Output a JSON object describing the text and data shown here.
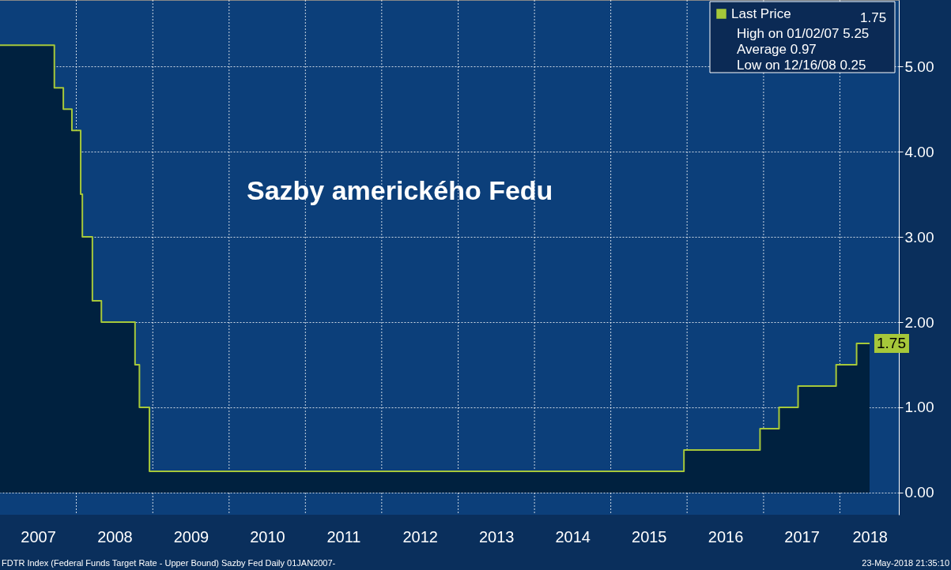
{
  "chart_data": {
    "type": "step",
    "title": "Sazby amerického Fedu",
    "x": [
      "2007-01-01",
      "2007-09-18",
      "2007-10-31",
      "2007-12-11",
      "2008-01-22",
      "2008-01-30",
      "2008-03-18",
      "2008-04-30",
      "2008-10-08",
      "2008-10-29",
      "2008-12-16",
      "2015-12-17",
      "2016-12-15",
      "2017-03-16",
      "2017-06-15",
      "2017-12-14",
      "2018-03-22",
      "2018-05-23"
    ],
    "series": [
      {
        "type": "area",
        "color": "#00213f",
        "values": [
          5.25,
          4.75,
          4.5,
          4.25,
          3.5,
          3.0,
          2.25,
          2.0,
          1.5,
          1.0,
          0.25,
          0.5,
          0.75,
          1.0,
          1.25,
          1.5,
          1.75,
          1.75
        ]
      },
      {
        "name": "Last Price",
        "color": "#a6c83a",
        "values": [
          5.25,
          4.75,
          4.5,
          4.25,
          3.5,
          3.0,
          2.25,
          2.0,
          1.5,
          1.0,
          0.25,
          0.5,
          0.75,
          1.0,
          1.25,
          1.5,
          1.75,
          1.75
        ],
        "value_labels": [
          null,
          null,
          null,
          null,
          null,
          null,
          null,
          null,
          null,
          null,
          null,
          null,
          null,
          null,
          null,
          null,
          null,
          "1.75"
        ]
      }
    ],
    "xlim": [
      "2007-01-01",
      "2018-10-10"
    ],
    "xticks": [
      {
        "value": "2007-07-02",
        "label": "2007"
      },
      {
        "value": "2008-01-01",
        "label": null
      },
      {
        "value": "2008-07-02",
        "label": "2008"
      },
      {
        "value": "2009-01-01",
        "label": null
      },
      {
        "value": "2009-07-02",
        "label": "2009"
      },
      {
        "value": "2010-01-01",
        "label": null
      },
      {
        "value": "2010-07-02",
        "label": "2010"
      },
      {
        "value": "2011-01-01",
        "label": null
      },
      {
        "value": "2011-07-02",
        "label": "2011"
      },
      {
        "value": "2012-01-01",
        "label": null
      },
      {
        "value": "2012-07-02",
        "label": "2012"
      },
      {
        "value": "2013-01-01",
        "label": null
      },
      {
        "value": "2013-07-02",
        "label": "2013"
      },
      {
        "value": "2014-01-01",
        "label": null
      },
      {
        "value": "2014-07-02",
        "label": "2014"
      },
      {
        "value": "2015-01-01",
        "label": null
      },
      {
        "value": "2015-07-02",
        "label": "2015"
      },
      {
        "value": "2016-01-01",
        "label": null
      },
      {
        "value": "2016-07-02",
        "label": "2016"
      },
      {
        "value": "2017-01-01",
        "label": null
      },
      {
        "value": "2017-07-02",
        "label": "2017"
      },
      {
        "value": "2018-01-01",
        "label": null
      },
      {
        "value": "2018-05-24",
        "label": "2018"
      }
    ],
    "ylim": [
      -0.26,
      5.78
    ],
    "yticks": [
      {
        "value": 0,
        "label": "0.00"
      },
      {
        "value": 1,
        "label": "1.00"
      },
      {
        "value": 2,
        "label": "2.00"
      },
      {
        "value": 3,
        "label": "3.00"
      },
      {
        "value": 4,
        "label": "4.00"
      },
      {
        "value": 5,
        "label": "5.00"
      }
    ],
    "grid": true,
    "legend": "top right",
    "annotations": [
      "High on 01/02/07 5.25",
      "Average 0.97",
      "Low on 12/16/08 0.25",
      "FDTR Index (Federal Funds Target Rate - Upper Bound) Sazby Fed  Daily 01JAN2007-",
      "23-May-2018 21:35:10"
    ]
  }
}
